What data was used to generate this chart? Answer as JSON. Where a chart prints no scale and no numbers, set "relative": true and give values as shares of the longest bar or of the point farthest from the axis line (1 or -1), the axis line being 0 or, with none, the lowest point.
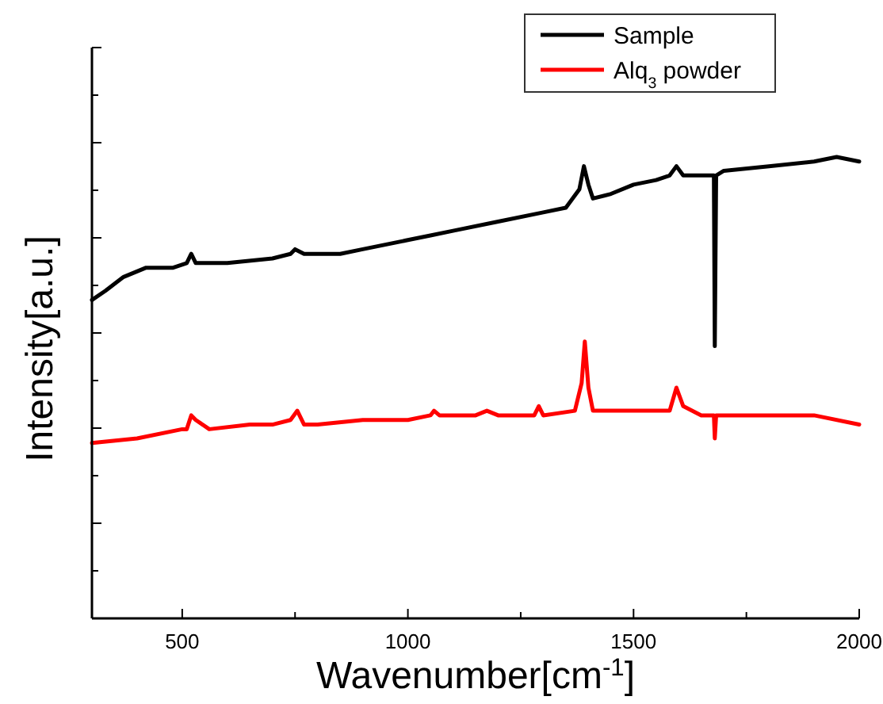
{
  "chart_data": {
    "type": "line",
    "xlabel": "Wavenumber[cm$^{-1}$]",
    "ylabel": "Intensity[a.u.]",
    "relative": true,
    "xlim": [
      300,
      2000
    ],
    "xticks": [
      500,
      {
        "value": 750,
        "label": null
      },
      1000,
      {
        "value": 1250,
        "label": null
      },
      1500,
      {
        "value": 1750,
        "label": null
      },
      2000
    ],
    "legend": "top right",
    "series": [
      {
        "name": "Sample",
        "color": "#000000",
        "x": [
          300,
          330,
          370,
          420,
          480,
          510,
          520,
          530,
          600,
          700,
          740,
          750,
          770,
          850,
          900,
          1000,
          1050,
          1100,
          1200,
          1300,
          1350,
          1380,
          1390,
          1400,
          1410,
          1450,
          1500,
          1550,
          1580,
          1595,
          1610,
          1650,
          1678,
          1680,
          1683,
          1700,
          1800,
          1900,
          1950,
          2000
        ],
        "values": [
          0.69,
          0.71,
          0.74,
          0.76,
          0.76,
          0.77,
          0.79,
          0.77,
          0.77,
          0.78,
          0.79,
          0.8,
          0.79,
          0.79,
          0.8,
          0.82,
          0.83,
          0.84,
          0.86,
          0.88,
          0.89,
          0.93,
          0.98,
          0.94,
          0.91,
          0.92,
          0.94,
          0.95,
          0.96,
          0.98,
          0.96,
          0.96,
          0.96,
          0.59,
          0.96,
          0.97,
          0.98,
          0.99,
          1,
          0.99
        ]
      },
      {
        "name": "Alq$_{3}$ powder",
        "color": "#ff0000",
        "x": [
          300,
          400,
          500,
          510,
          520,
          530,
          560,
          650,
          700,
          740,
          755,
          770,
          800,
          900,
          1000,
          1050,
          1058,
          1070,
          1150,
          1175,
          1200,
          1280,
          1290,
          1300,
          1370,
          1385,
          1392,
          1400,
          1410,
          1450,
          1500,
          1580,
          1595,
          1610,
          1650,
          1678,
          1680,
          1683,
          1800,
          1900,
          2000
        ],
        "values": [
          0.38,
          0.39,
          0.41,
          0.41,
          0.44,
          0.43,
          0.41,
          0.42,
          0.42,
          0.43,
          0.45,
          0.42,
          0.42,
          0.43,
          0.43,
          0.44,
          0.45,
          0.44,
          0.44,
          0.45,
          0.44,
          0.44,
          0.46,
          0.44,
          0.45,
          0.51,
          0.6,
          0.5,
          0.45,
          0.45,
          0.45,
          0.45,
          0.5,
          0.46,
          0.44,
          0.44,
          0.39,
          0.44,
          0.44,
          0.44,
          0.42
        ]
      }
    ]
  }
}
